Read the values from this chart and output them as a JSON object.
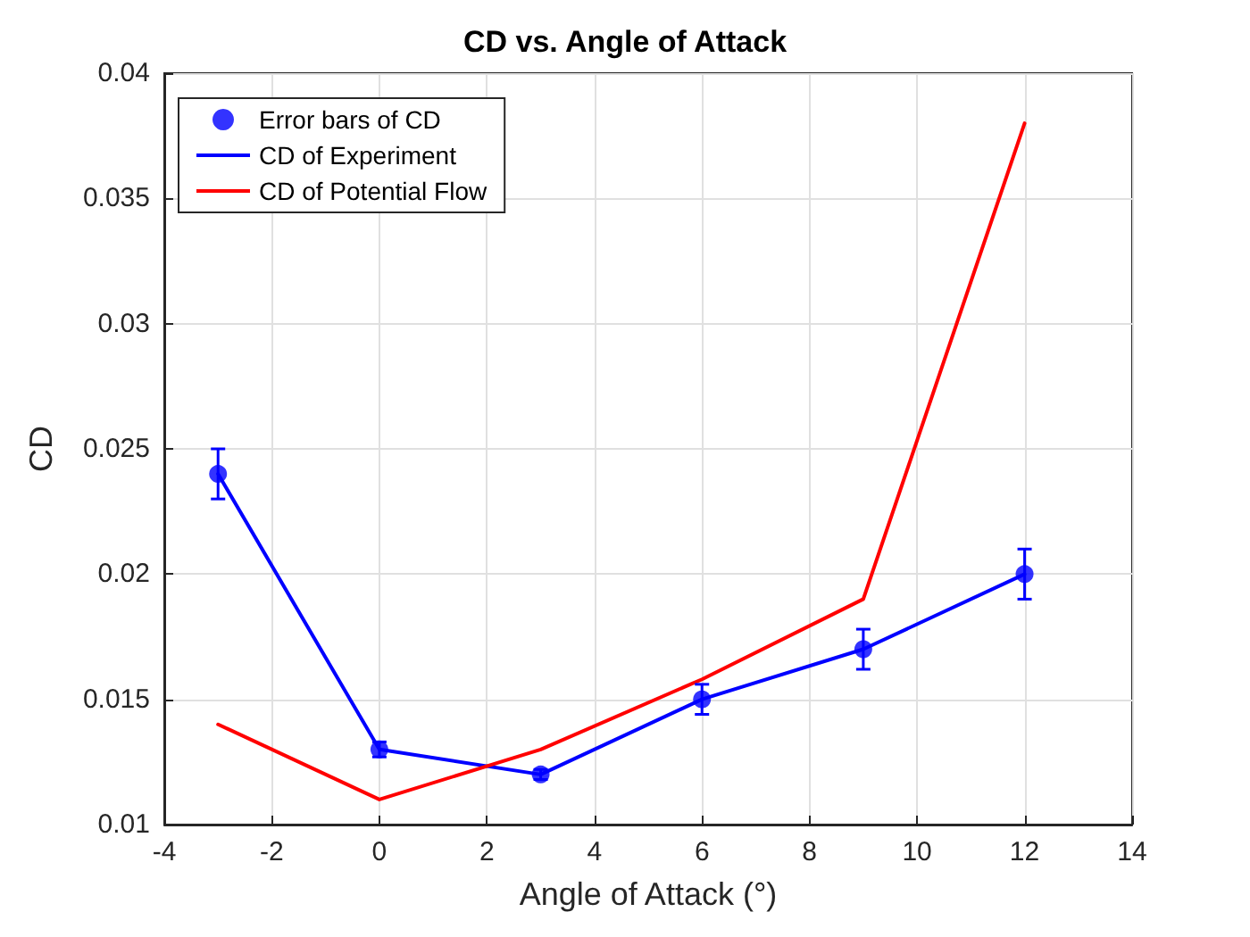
{
  "chart_data": {
    "type": "line",
    "title": "CD vs. Angle of Attack",
    "xlabel": "Angle of Attack (°)",
    "ylabel": "CD",
    "x": [
      -3,
      0,
      3,
      6,
      9,
      12
    ],
    "series": [
      {
        "name": "Error bars of CD",
        "type": "scatter",
        "color": "#0000ff",
        "marker": "circle",
        "values": [
          0.024,
          0.013,
          0.012,
          0.015,
          0.017,
          0.02
        ],
        "errors": [
          0.001,
          0.0003,
          0.0002,
          0.0006,
          0.0008,
          0.001
        ]
      },
      {
        "name": "CD of Experiment",
        "color": "#0000ff",
        "marker": "none",
        "values": [
          0.024,
          0.013,
          0.012,
          0.015,
          0.017,
          0.02
        ]
      },
      {
        "name": "CD of Potential Flow",
        "color": "#ff0000",
        "marker": "none",
        "values": [
          0.014,
          0.011,
          0.013,
          0.0158,
          0.019,
          0.038
        ]
      }
    ],
    "xlim": [
      -4,
      14
    ],
    "xticks": [
      -4,
      -2,
      0,
      2,
      4,
      6,
      8,
      10,
      12,
      14
    ],
    "ylim": [
      0.01,
      0.04
    ],
    "yticks": [
      0.01,
      0.015,
      0.02,
      0.025,
      0.03,
      0.035,
      0.04
    ],
    "grid": true,
    "legend": "top left"
  }
}
